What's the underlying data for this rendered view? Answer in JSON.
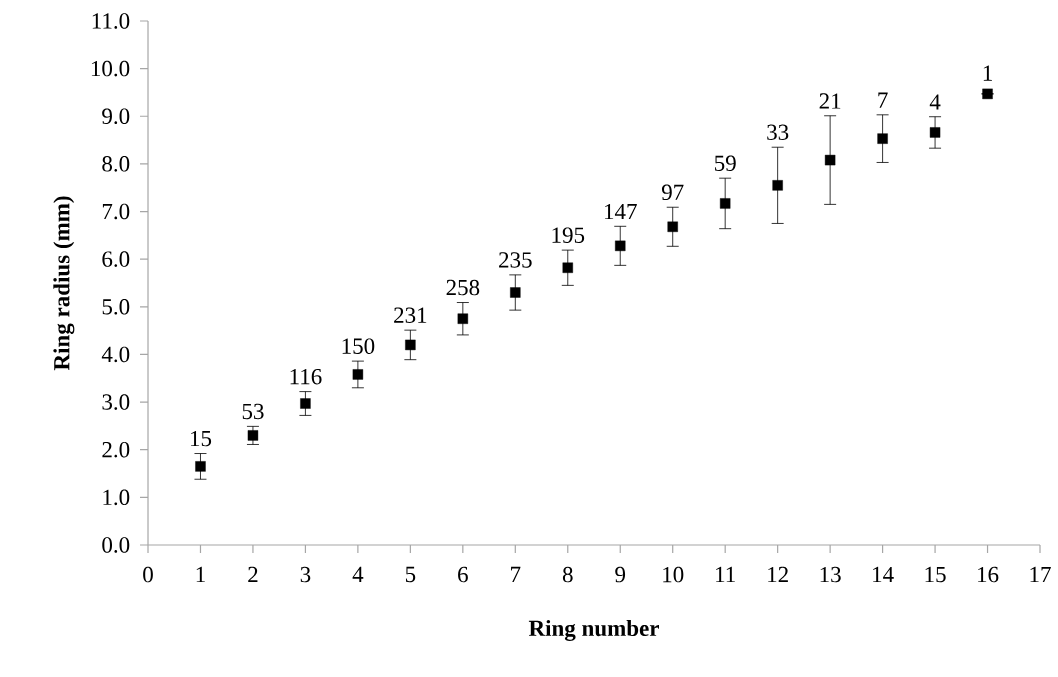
{
  "chart_data": {
    "type": "scatter",
    "xlabel": "Ring number",
    "ylabel": "Ring radius (mm)",
    "x": [
      1,
      2,
      3,
      4,
      5,
      6,
      7,
      8,
      9,
      10,
      11,
      12,
      13,
      14,
      15,
      16
    ],
    "series": [
      {
        "color": "#000000",
        "values": [
          1.65,
          2.3,
          2.97,
          3.58,
          4.2,
          4.75,
          5.3,
          5.82,
          6.28,
          6.68,
          7.17,
          7.55,
          8.08,
          8.53,
          8.66,
          9.47
        ],
        "errors": [
          0.27,
          0.19,
          0.25,
          0.28,
          0.31,
          0.34,
          0.37,
          0.37,
          0.41,
          0.41,
          0.53,
          0.8,
          0.93,
          0.5,
          0.33,
          null
        ]
      }
    ],
    "annotations": [
      {
        "text": "15",
        "x": 1,
        "y": 1.65
      },
      {
        "text": "53",
        "x": 2,
        "y": 2.3
      },
      {
        "text": "116",
        "x": 3,
        "y": 2.97
      },
      {
        "text": "150",
        "x": 4,
        "y": 3.58
      },
      {
        "text": "231",
        "x": 5,
        "y": 4.2
      },
      {
        "text": "258",
        "x": 6,
        "y": 4.75
      },
      {
        "text": "235",
        "x": 7,
        "y": 5.3
      },
      {
        "text": "195",
        "x": 8,
        "y": 5.82
      },
      {
        "text": "147",
        "x": 9,
        "y": 6.28
      },
      {
        "text": "97",
        "x": 10,
        "y": 6.68
      },
      {
        "text": "59",
        "x": 11,
        "y": 7.17
      },
      {
        "text": "33",
        "x": 12,
        "y": 7.55
      },
      {
        "text": "21",
        "x": 13,
        "y": 8.08
      },
      {
        "text": "7",
        "x": 14,
        "y": 8.53
      },
      {
        "text": "4",
        "x": 15,
        "y": 8.66
      },
      {
        "text": "1",
        "x": 16,
        "y": 9.47
      }
    ],
    "xlim": [
      0,
      17
    ],
    "xticks": [
      0,
      1,
      2,
      3,
      4,
      5,
      6,
      7,
      8,
      9,
      10,
      11,
      12,
      13,
      14,
      15,
      16,
      17
    ],
    "ylim": [
      0,
      11
    ],
    "yticks": [
      {
        "value": 0,
        "label": "0.0"
      },
      {
        "value": 1,
        "label": "1.0"
      },
      {
        "value": 2,
        "label": "2.0"
      },
      {
        "value": 3,
        "label": "3.0"
      },
      {
        "value": 4,
        "label": "4.0"
      },
      {
        "value": 5,
        "label": "5.0"
      },
      {
        "value": 6,
        "label": "6.0"
      },
      {
        "value": 7,
        "label": "7.0"
      },
      {
        "value": 8,
        "label": "8.0"
      },
      {
        "value": 9,
        "label": "9.0"
      },
      {
        "value": 10,
        "label": "10.0"
      },
      {
        "value": 11,
        "label": "11.0"
      }
    ],
    "marker": "square",
    "grid": false
  }
}
